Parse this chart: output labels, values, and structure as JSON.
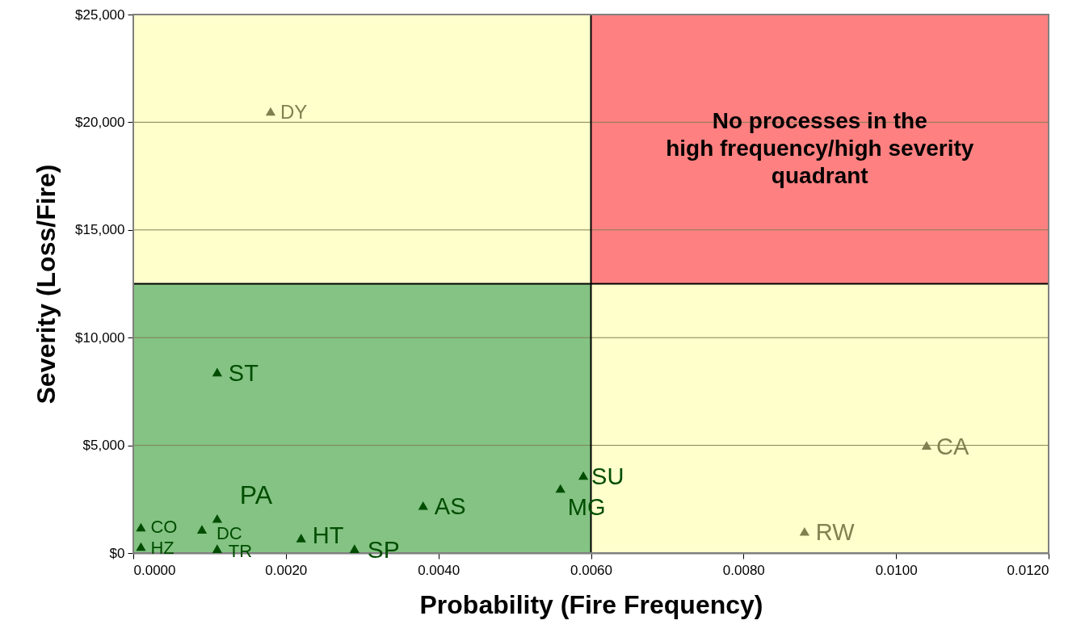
{
  "chart_data": {
    "type": "scatter",
    "xlabel": "Probability (Fire Frequency)",
    "ylabel": "Severity (Loss/Fire)",
    "series": [
      {
        "color": "#004d00",
        "x": [
          0.0001,
          0.0001,
          0.0009,
          0.0011,
          0.0011,
          0.0022,
          0.0029,
          0.0038,
          0.0056,
          0.0059,
          0.0011
        ],
        "values": [
          1200,
          300,
          1100,
          1600,
          200,
          700,
          200,
          2200,
          3000,
          3600,
          8400
        ]
      },
      {
        "color": "#808050",
        "x": [
          0.0104,
          0.0088,
          0.0018
        ],
        "values": [
          5000,
          1000,
          20500
        ]
      }
    ],
    "annotations": [
      {
        "text": "CO",
        "x": 0.0001,
        "y": 1200
      },
      {
        "text": "HZ",
        "x": 0.0001,
        "y": 300
      },
      {
        "text": "DC",
        "x": 0.0009,
        "y": 1100
      },
      {
        "text": "PA",
        "x": 0.0011,
        "y": 1600
      },
      {
        "text": "TR",
        "x": 0.0011,
        "y": 200
      },
      {
        "text": "HT",
        "x": 0.0022,
        "y": 700
      },
      {
        "text": "SP",
        "x": 0.0029,
        "y": 200
      },
      {
        "text": "AS",
        "x": 0.0038,
        "y": 2200
      },
      {
        "text": "MG",
        "x": 0.0056,
        "y": 3000
      },
      {
        "text": "SU",
        "x": 0.0059,
        "y": 3600
      },
      {
        "text": "ST",
        "x": 0.0011,
        "y": 8400
      },
      {
        "text": "CA",
        "x": 0.0104,
        "y": 5000
      },
      {
        "text": "RW",
        "x": 0.0088,
        "y": 1000
      },
      {
        "text": "DY",
        "x": 0.0018,
        "y": 20500
      },
      "No processes in the\nhigh frequency/high severity\nquadrant"
    ],
    "ref_lines": [
      {
        "axis": "x",
        "value": 0.006,
        "color": "#000000"
      },
      {
        "axis": "y",
        "value": 12500,
        "color": "#000000"
      }
    ],
    "xlim": [
      0,
      0.012
    ],
    "xticks": [
      {
        "value": 0,
        "label": "0.0000"
      },
      {
        "value": 0.002,
        "label": "0.0020"
      },
      {
        "value": 0.004,
        "label": "0.0040"
      },
      {
        "value": 0.006,
        "label": "0.0060"
      },
      {
        "value": 0.008,
        "label": "0.0080"
      },
      {
        "value": 0.01,
        "label": "0.0100"
      },
      {
        "value": 0.012,
        "label": "0.0120"
      }
    ],
    "ylim": [
      0,
      25000
    ],
    "yticks": [
      {
        "value": 0,
        "label": "$0"
      },
      {
        "value": 5000,
        "label": "$5,000"
      },
      {
        "value": 10000,
        "label": "$10,000"
      },
      {
        "value": 15000,
        "label": "$15,000"
      },
      {
        "value": 20000,
        "label": "$20,000"
      },
      {
        "value": 25000,
        "label": "$25,000"
      }
    ],
    "grid": "y",
    "marker": "triangle"
  }
}
